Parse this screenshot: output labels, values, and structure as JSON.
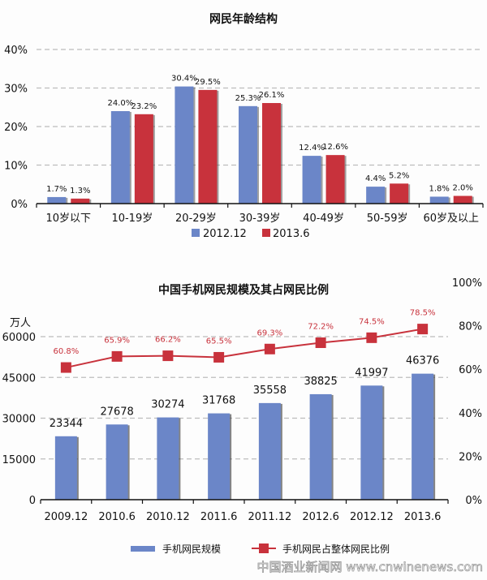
{
  "colors": {
    "blue": "#6b86c8",
    "red": "#c8323c",
    "grid": "#bdbdbd"
  },
  "chart_data": [
    {
      "type": "bar",
      "title": "网民年龄结构",
      "categories": [
        "10岁以下",
        "10-19岁",
        "20-29岁",
        "30-39岁",
        "40-49岁",
        "50-59岁",
        "60岁及以上"
      ],
      "series": [
        {
          "name": "2012.12",
          "values": [
            1.7,
            24.0,
            30.4,
            25.3,
            12.4,
            4.4,
            1.8
          ],
          "labels": [
            "1.7%",
            "24.0%",
            "30.4%",
            "25.3%",
            "12.4%",
            "4.4%",
            "1.8%"
          ]
        },
        {
          "name": "2013.6",
          "values": [
            1.3,
            23.2,
            29.5,
            26.1,
            12.6,
            5.2,
            2.0
          ],
          "labels": [
            "1.3%",
            "23.2%",
            "29.5%",
            "26.1%",
            "12.6%",
            "5.2%",
            "2.0%"
          ]
        }
      ],
      "yticks": [
        "0%",
        "10%",
        "20%",
        "30%",
        "40%"
      ],
      "ylim": [
        0,
        40
      ],
      "grid": true,
      "legend": "bottom"
    },
    {
      "type": "bar+line",
      "title": "中国手机网民规模及其占网民比例",
      "categories": [
        "2009.12",
        "2010.6",
        "2010.12",
        "2011.6",
        "2011.12",
        "2012.6",
        "2012.12",
        "2013.6"
      ],
      "y_unit": "万人",
      "bar_series": {
        "name": "手机网民规模",
        "values": [
          23344,
          27678,
          30274,
          31768,
          35558,
          38825,
          41997,
          46376
        ],
        "labels": [
          "23344",
          "27678",
          "30274",
          "31768",
          "35558",
          "38825",
          "41997",
          "46376"
        ]
      },
      "line_series": {
        "name": "手机网民占整体网民比例",
        "values": [
          60.8,
          65.9,
          66.2,
          65.5,
          69.3,
          72.2,
          74.5,
          78.5
        ],
        "labels": [
          "60.8%",
          "65.9%",
          "66.2%",
          "65.5%",
          "69.3%",
          "72.2%",
          "74.5%",
          "78.5%"
        ]
      },
      "yticks_left": [
        "0",
        "15000",
        "30000",
        "45000",
        "60000"
      ],
      "ylim_left": [
        0,
        60000
      ],
      "yticks_right": [
        "0%",
        "20%",
        "40%",
        "60%",
        "80%",
        "100%"
      ],
      "ylim_right": [
        0,
        100
      ],
      "grid": true,
      "legend": "bottom"
    }
  ],
  "watermark": "中国酒业新闻网 www.cnwinenews.com"
}
